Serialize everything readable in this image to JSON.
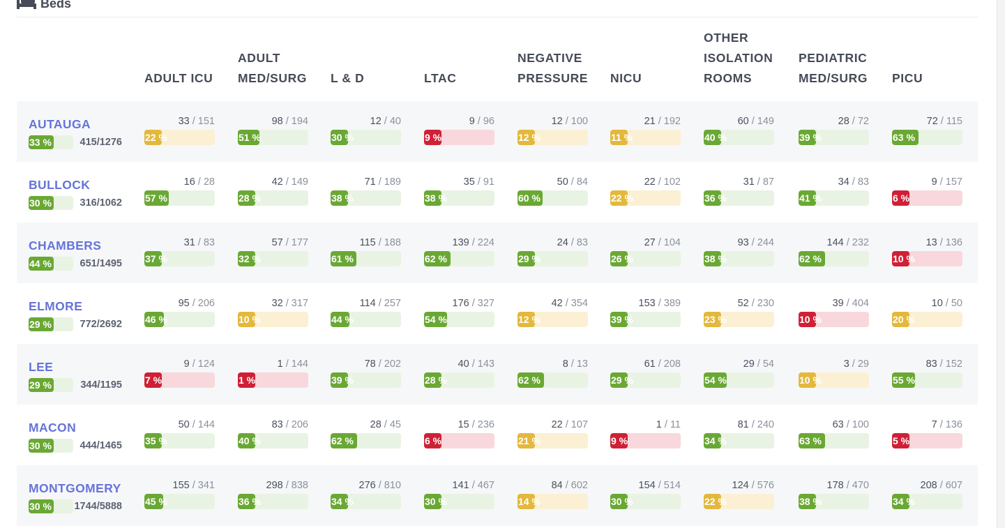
{
  "panel": {
    "title": "Beds",
    "icon": "bed-icon"
  },
  "columns": [
    {
      "key": "adult_icu",
      "label": "ADULT ICU"
    },
    {
      "key": "adult_medsurg",
      "label": "ADULT\nMED/SURG"
    },
    {
      "key": "l_and_d",
      "label": "L & D"
    },
    {
      "key": "ltac",
      "label": "LTAC"
    },
    {
      "key": "negative_pressure",
      "label": "NEGATIVE\nPRESSURE"
    },
    {
      "key": "nicu",
      "label": "NICU"
    },
    {
      "key": "other_isolation",
      "label": "OTHER\nISOLATION\nROOMS"
    },
    {
      "key": "pediatric_medsurg",
      "label": "PEDIATRIC\nMED/SURG"
    },
    {
      "key": "picu",
      "label": "PICU"
    }
  ],
  "status_colors": {
    "green": "#6aa834",
    "yellow": "#e3b83c",
    "red": "#cf2035",
    "green_bg": "#e9f3e3",
    "yellow_bg": "#fbf0d3",
    "red_bg": "#f8d8dc"
  },
  "rows": [
    {
      "county": "AUTAUGA",
      "pct_label": "33 %",
      "pct": 33,
      "total": "415/1276",
      "cells": [
        {
          "used": "33",
          "cap": "151",
          "pct_label": "22 %",
          "pct": 22,
          "status": "yellow"
        },
        {
          "used": "98",
          "cap": "194",
          "pct_label": "51 %",
          "pct": 51,
          "status": "green"
        },
        {
          "used": "12",
          "cap": "40",
          "pct_label": "30 %",
          "pct": 30,
          "status": "green"
        },
        {
          "used": "9",
          "cap": "96",
          "pct_label": "9 %",
          "pct": 9,
          "status": "red"
        },
        {
          "used": "12",
          "cap": "100",
          "pct_label": "12 %",
          "pct": 12,
          "status": "yellow"
        },
        {
          "used": "21",
          "cap": "192",
          "pct_label": "11 %",
          "pct": 11,
          "status": "yellow"
        },
        {
          "used": "60",
          "cap": "149",
          "pct_label": "40 %",
          "pct": 40,
          "status": "green"
        },
        {
          "used": "28",
          "cap": "72",
          "pct_label": "39 %",
          "pct": 39,
          "status": "green"
        },
        {
          "used": "72",
          "cap": "115",
          "pct_label": "63 %",
          "pct": 63,
          "status": "green"
        }
      ]
    },
    {
      "county": "BULLOCK",
      "pct_label": "30 %",
      "pct": 30,
      "total": "316/1062",
      "cells": [
        {
          "used": "16",
          "cap": "28",
          "pct_label": "57 %",
          "pct": 57,
          "status": "green"
        },
        {
          "used": "42",
          "cap": "149",
          "pct_label": "28 %",
          "pct": 28,
          "status": "green"
        },
        {
          "used": "71",
          "cap": "189",
          "pct_label": "38 %",
          "pct": 38,
          "status": "green"
        },
        {
          "used": "35",
          "cap": "91",
          "pct_label": "38 %",
          "pct": 38,
          "status": "green"
        },
        {
          "used": "50",
          "cap": "84",
          "pct_label": "60 %",
          "pct": 60,
          "status": "green"
        },
        {
          "used": "22",
          "cap": "102",
          "pct_label": "22 %",
          "pct": 22,
          "status": "yellow"
        },
        {
          "used": "31",
          "cap": "87",
          "pct_label": "36 %",
          "pct": 36,
          "status": "green"
        },
        {
          "used": "34",
          "cap": "83",
          "pct_label": "41 %",
          "pct": 41,
          "status": "green"
        },
        {
          "used": "9",
          "cap": "157",
          "pct_label": "6 %",
          "pct": 6,
          "status": "red"
        }
      ]
    },
    {
      "county": "CHAMBERS",
      "pct_label": "44 %",
      "pct": 44,
      "total": "651/1495",
      "cells": [
        {
          "used": "31",
          "cap": "83",
          "pct_label": "37 %",
          "pct": 37,
          "status": "green"
        },
        {
          "used": "57",
          "cap": "177",
          "pct_label": "32 %",
          "pct": 32,
          "status": "green"
        },
        {
          "used": "115",
          "cap": "188",
          "pct_label": "61 %",
          "pct": 61,
          "status": "green"
        },
        {
          "used": "139",
          "cap": "224",
          "pct_label": "62 %",
          "pct": 62,
          "status": "green"
        },
        {
          "used": "24",
          "cap": "83",
          "pct_label": "29 %",
          "pct": 29,
          "status": "green"
        },
        {
          "used": "27",
          "cap": "104",
          "pct_label": "26 %",
          "pct": 26,
          "status": "green"
        },
        {
          "used": "93",
          "cap": "244",
          "pct_label": "38 %",
          "pct": 38,
          "status": "green"
        },
        {
          "used": "144",
          "cap": "232",
          "pct_label": "62 %",
          "pct": 62,
          "status": "green"
        },
        {
          "used": "13",
          "cap": "136",
          "pct_label": "10 %",
          "pct": 10,
          "status": "red"
        }
      ]
    },
    {
      "county": "ELMORE",
      "pct_label": "29 %",
      "pct": 29,
      "total": "772/2692",
      "cells": [
        {
          "used": "95",
          "cap": "206",
          "pct_label": "46 %",
          "pct": 46,
          "status": "green"
        },
        {
          "used": "32",
          "cap": "317",
          "pct_label": "10 %",
          "pct": 10,
          "status": "yellow"
        },
        {
          "used": "114",
          "cap": "257",
          "pct_label": "44 %",
          "pct": 44,
          "status": "green"
        },
        {
          "used": "176",
          "cap": "327",
          "pct_label": "54 %",
          "pct": 54,
          "status": "green"
        },
        {
          "used": "42",
          "cap": "354",
          "pct_label": "12 %",
          "pct": 12,
          "status": "yellow"
        },
        {
          "used": "153",
          "cap": "389",
          "pct_label": "39 %",
          "pct": 39,
          "status": "green"
        },
        {
          "used": "52",
          "cap": "230",
          "pct_label": "23 %",
          "pct": 23,
          "status": "yellow"
        },
        {
          "used": "39",
          "cap": "404",
          "pct_label": "10 %",
          "pct": 10,
          "status": "red"
        },
        {
          "used": "10",
          "cap": "50",
          "pct_label": "20 %",
          "pct": 20,
          "status": "yellow"
        }
      ]
    },
    {
      "county": "LEE",
      "pct_label": "29 %",
      "pct": 29,
      "total": "344/1195",
      "cells": [
        {
          "used": "9",
          "cap": "124",
          "pct_label": "7 %",
          "pct": 7,
          "status": "red"
        },
        {
          "used": "1",
          "cap": "144",
          "pct_label": "1 %",
          "pct": 1,
          "status": "red"
        },
        {
          "used": "78",
          "cap": "202",
          "pct_label": "39 %",
          "pct": 39,
          "status": "green"
        },
        {
          "used": "40",
          "cap": "143",
          "pct_label": "28 %",
          "pct": 28,
          "status": "green"
        },
        {
          "used": "8",
          "cap": "13",
          "pct_label": "62 %",
          "pct": 62,
          "status": "green"
        },
        {
          "used": "61",
          "cap": "208",
          "pct_label": "29 %",
          "pct": 29,
          "status": "green"
        },
        {
          "used": "29",
          "cap": "54",
          "pct_label": "54 %",
          "pct": 54,
          "status": "green"
        },
        {
          "used": "3",
          "cap": "29",
          "pct_label": "10 %",
          "pct": 10,
          "status": "yellow"
        },
        {
          "used": "83",
          "cap": "152",
          "pct_label": "55 %",
          "pct": 55,
          "status": "green"
        }
      ]
    },
    {
      "county": "MACON",
      "pct_label": "30 %",
      "pct": 30,
      "total": "444/1465",
      "cells": [
        {
          "used": "50",
          "cap": "144",
          "pct_label": "35 %",
          "pct": 35,
          "status": "green"
        },
        {
          "used": "83",
          "cap": "206",
          "pct_label": "40 %",
          "pct": 40,
          "status": "green"
        },
        {
          "used": "28",
          "cap": "45",
          "pct_label": "62 %",
          "pct": 62,
          "status": "green"
        },
        {
          "used": "15",
          "cap": "236",
          "pct_label": "6 %",
          "pct": 6,
          "status": "red"
        },
        {
          "used": "22",
          "cap": "107",
          "pct_label": "21 %",
          "pct": 21,
          "status": "yellow"
        },
        {
          "used": "1",
          "cap": "11",
          "pct_label": "9 %",
          "pct": 9,
          "status": "red"
        },
        {
          "used": "81",
          "cap": "240",
          "pct_label": "34 %",
          "pct": 34,
          "status": "green"
        },
        {
          "used": "63",
          "cap": "100",
          "pct_label": "63 %",
          "pct": 63,
          "status": "green"
        },
        {
          "used": "7",
          "cap": "136",
          "pct_label": "5 %",
          "pct": 5,
          "status": "red"
        }
      ]
    },
    {
      "county": "MONTGOMERY",
      "pct_label": "30 %",
      "pct": 30,
      "total": "1744/5888",
      "cells": [
        {
          "used": "155",
          "cap": "341",
          "pct_label": "45 %",
          "pct": 45,
          "status": "green"
        },
        {
          "used": "298",
          "cap": "838",
          "pct_label": "36 %",
          "pct": 36,
          "status": "green"
        },
        {
          "used": "276",
          "cap": "810",
          "pct_label": "34 %",
          "pct": 34,
          "status": "green"
        },
        {
          "used": "141",
          "cap": "467",
          "pct_label": "30 %",
          "pct": 30,
          "status": "green"
        },
        {
          "used": "84",
          "cap": "602",
          "pct_label": "14 %",
          "pct": 14,
          "status": "yellow"
        },
        {
          "used": "154",
          "cap": "514",
          "pct_label": "30 %",
          "pct": 30,
          "status": "green"
        },
        {
          "used": "124",
          "cap": "576",
          "pct_label": "22 %",
          "pct": 22,
          "status": "yellow"
        },
        {
          "used": "178",
          "cap": "470",
          "pct_label": "38 %",
          "pct": 38,
          "status": "green"
        },
        {
          "used": "208",
          "cap": "607",
          "pct_label": "34 %",
          "pct": 34,
          "status": "green"
        }
      ]
    }
  ]
}
